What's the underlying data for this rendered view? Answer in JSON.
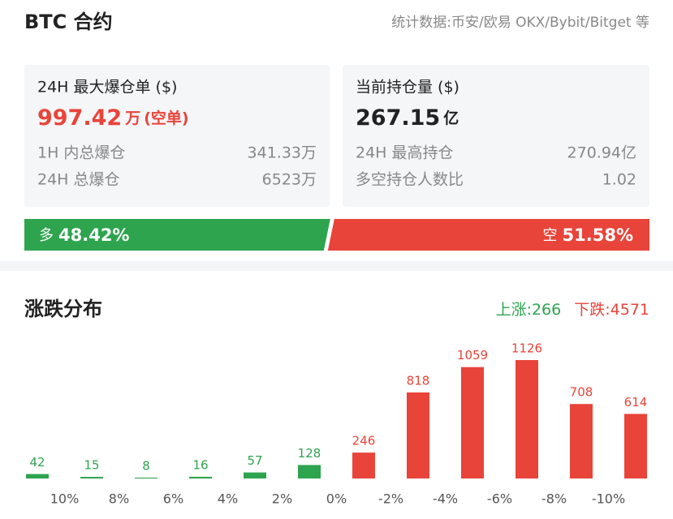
{
  "header": {
    "title": "BTC 合约",
    "source": "统计数据:币安/欧易 OKX/Bybit/Bitget 等"
  },
  "cards": [
    {
      "label": "24H 最大爆仓单 ($)",
      "value": "997.42",
      "unit": "万",
      "side": "(空单)",
      "rows": [
        [
          "1H 内总爆仓",
          "341.33万"
        ],
        [
          "24H 总爆仓",
          "6523万"
        ]
      ]
    },
    {
      "label": "当前持仓量 ($)",
      "value": "267.15",
      "unit": "亿",
      "rows": [
        [
          "24H 最高持仓",
          "270.94亿"
        ],
        [
          "多空持仓人数比",
          "1.02"
        ]
      ]
    }
  ],
  "ratio": {
    "long": {
      "name": "多",
      "value": 48.42,
      "value_label": "48.42%",
      "color": "#2ea44f"
    },
    "short": {
      "name": "空",
      "value": 51.58,
      "value_label": "51.58%",
      "color": "#e8443a"
    }
  },
  "chart_data": {
    "type": "bar",
    "title": "涨跌分布",
    "summary": [
      {
        "text": "上涨:266",
        "color": "#2ea44f"
      },
      {
        "text": "下跌:4571",
        "color": "#e8443a"
      }
    ],
    "values": [
      42,
      15,
      8,
      16,
      57,
      128,
      246,
      818,
      1059,
      1126,
      708,
      614
    ],
    "colors": [
      "#2ea44f",
      "#2ea44f",
      "#2ea44f",
      "#2ea44f",
      "#2ea44f",
      "#2ea44f",
      "#e8443a",
      "#e8443a",
      "#e8443a",
      "#e8443a",
      "#e8443a",
      "#e8443a"
    ],
    "boundary_labels": [
      "10%",
      "8%",
      "6%",
      "4%",
      "2%",
      "0%",
      "-2%",
      "-4%",
      "-6%",
      "-8%",
      "-10%"
    ]
  }
}
